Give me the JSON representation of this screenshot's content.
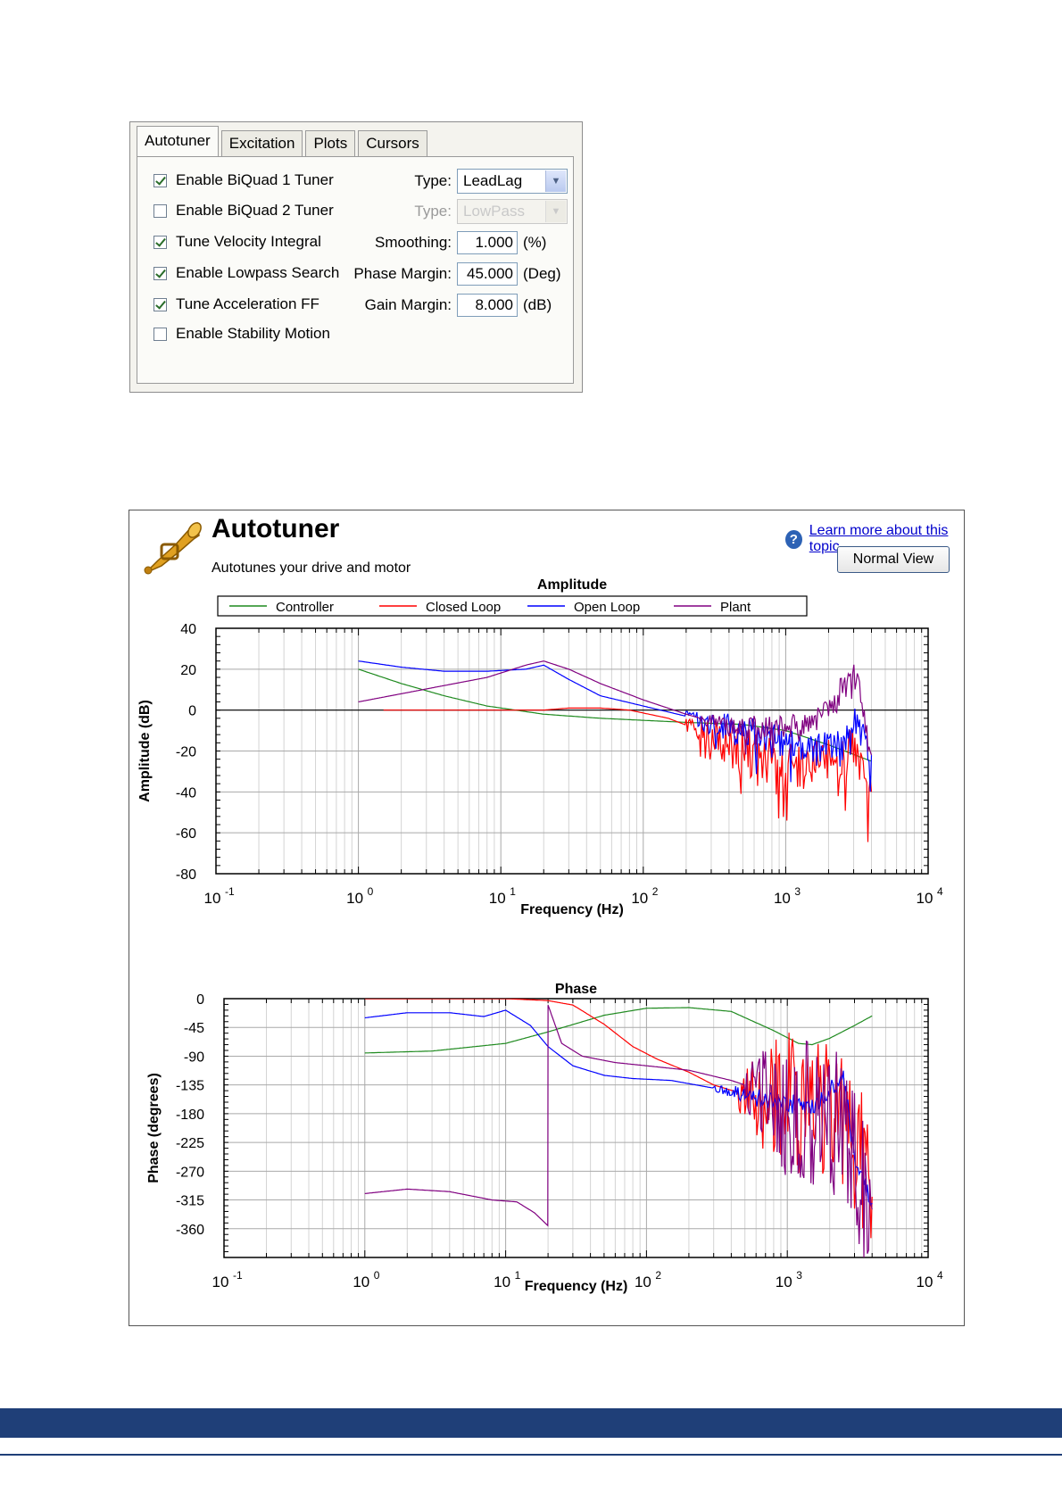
{
  "dialog": {
    "tabs": [
      {
        "label": "Autotuner",
        "active": true
      },
      {
        "label": "Excitation",
        "active": false
      },
      {
        "label": "Plots",
        "active": false
      },
      {
        "label": "Cursors",
        "active": false
      }
    ],
    "checkboxes": [
      {
        "label": "Enable BiQuad 1 Tuner",
        "checked": true,
        "enabled": true
      },
      {
        "label": "Enable BiQuad 2 Tuner",
        "checked": false,
        "enabled": true
      },
      {
        "label": "Tune Velocity Integral",
        "checked": true,
        "enabled": true
      },
      {
        "label": "Enable Lowpass Search",
        "checked": true,
        "enabled": true
      },
      {
        "label": "Tune Acceleration FF",
        "checked": true,
        "enabled": true
      },
      {
        "label": "Enable Stability Motion",
        "checked": false,
        "enabled": true
      }
    ],
    "type1": {
      "label": "Type:",
      "value": "LeadLag",
      "enabled": true
    },
    "type2": {
      "label": "Type:",
      "value": "LowPass",
      "enabled": false
    },
    "smoothing": {
      "label": "Smoothing:",
      "value": "1.000",
      "unit": "(%)"
    },
    "phase_margin": {
      "label": "Phase Margin:",
      "value": "45.000",
      "unit": "(Deg)"
    },
    "gain_margin": {
      "label": "Gain Margin:",
      "value": "8.000",
      "unit": "(dB)"
    }
  },
  "window": {
    "title": "Autotuner",
    "subtitle": "Autotunes your drive and motor",
    "help_link": "Learn more about this topic",
    "normal_view_button": "Normal View",
    "icon": "trumpet-icon"
  },
  "chart_data": [
    {
      "type": "line",
      "title": "Amplitude",
      "xlabel": "Frequency (Hz)",
      "ylabel": "Amplitude (dB)",
      "xscale": "log",
      "xlim": [
        0.1,
        10000
      ],
      "ylim": [
        -80,
        40
      ],
      "xticks": [
        0.1,
        1,
        10,
        100,
        1000,
        10000
      ],
      "xtick_labels": [
        [
          "10",
          "-1"
        ],
        [
          "10",
          "0"
        ],
        [
          "10",
          "1"
        ],
        [
          "10",
          "2"
        ],
        [
          "10",
          "3"
        ],
        [
          "10",
          "4"
        ]
      ],
      "yticks": [
        40,
        20,
        0,
        -20,
        -40,
        -60,
        -80
      ],
      "ytick_labels": [
        "40",
        "20",
        "0",
        "-20",
        "-40",
        "-60",
        "-80"
      ],
      "grid": true,
      "legend": "top",
      "series": [
        {
          "name": "Controller",
          "color": "#1f8a1f",
          "x": [
            1,
            2,
            4,
            8,
            20,
            50,
            100,
            200,
            500,
            1000,
            2000,
            4000
          ],
          "y": [
            20,
            13,
            7,
            2,
            -2,
            -4,
            -5,
            -6,
            -7,
            -10,
            -17,
            -25
          ]
        },
        {
          "name": "Closed Loop",
          "color": "#ff0000",
          "x": [
            1.5,
            3,
            6,
            10,
            15,
            20,
            30,
            50,
            80,
            150,
            300,
            600,
            1000,
            2000,
            3000,
            4000
          ],
          "y": [
            0,
            0,
            0,
            0,
            0,
            0,
            1,
            1,
            0,
            -4,
            -12,
            -22,
            -28,
            -25,
            -20,
            -40
          ],
          "noise": 12,
          "noise_from": 200
        },
        {
          "name": "Open Loop",
          "color": "#0000ff",
          "x": [
            1,
            2,
            4,
            8,
            15,
            20,
            30,
            50,
            100,
            200,
            400,
            800,
            1500,
            2500,
            3000,
            4000
          ],
          "y": [
            24,
            21,
            19,
            19,
            20,
            22,
            15,
            7,
            2,
            -3,
            -9,
            -14,
            -20,
            -17,
            -3,
            -22
          ],
          "noise": 8,
          "noise_from": 200
        },
        {
          "name": "Plant",
          "color": "#800080",
          "x": [
            1,
            2,
            4,
            8,
            15,
            20,
            30,
            50,
            100,
            200,
            400,
            800,
            1500,
            2200,
            2800,
            3300,
            4000
          ],
          "y": [
            4,
            8,
            12,
            16,
            22,
            24,
            20,
            13,
            5,
            -2,
            -8,
            -9,
            -6,
            2,
            22,
            10,
            -22
          ],
          "noise": 6,
          "noise_from": 250
        }
      ]
    },
    {
      "type": "line",
      "title": "Phase",
      "xlabel": "Frequency (Hz)",
      "ylabel": "Phase (degrees)",
      "xscale": "log",
      "xlim": [
        0.1,
        10000
      ],
      "ylim": [
        -405,
        0
      ],
      "xticks": [
        0.1,
        1,
        10,
        100,
        1000,
        10000
      ],
      "xtick_labels": [
        [
          "10",
          "-1"
        ],
        [
          "10",
          "0"
        ],
        [
          "10",
          "1"
        ],
        [
          "10",
          "2"
        ],
        [
          "10",
          "3"
        ],
        [
          "10",
          "4"
        ]
      ],
      "yticks": [
        0,
        -45,
        -90,
        -135,
        -180,
        -225,
        -270,
        -315,
        -360
      ],
      "ytick_labels": [
        "0",
        "-45",
        "-90",
        "-135",
        "-180",
        "-225",
        "-270",
        "-315",
        "-360"
      ],
      "grid": true,
      "series": [
        {
          "name": "Controller",
          "color": "#1f8a1f",
          "x": [
            1,
            3,
            10,
            20,
            50,
            100,
            200,
            400,
            800,
            1200,
            1500,
            2000,
            3000,
            4000
          ],
          "y": [
            -85,
            -82,
            -70,
            -52,
            -26,
            -15,
            -14,
            -20,
            -50,
            -70,
            -72,
            -62,
            -42,
            -27
          ]
        },
        {
          "name": "Closed Loop",
          "color": "#ff0000",
          "x": [
            1,
            5,
            10,
            20,
            30,
            50,
            80,
            120,
            200,
            300,
            500,
            800,
            1200,
            2000,
            3000,
            4000
          ],
          "y": [
            0,
            0,
            0,
            -3,
            -10,
            -40,
            -75,
            -95,
            -115,
            -135,
            -150,
            -160,
            -165,
            -170,
            -220,
            -310
          ],
          "noise": 110,
          "noise_from": 450
        },
        {
          "name": "Open Loop",
          "color": "#0000ff",
          "x": [
            1,
            2,
            4,
            7,
            10,
            15,
            20,
            30,
            50,
            80,
            150,
            300,
            500,
            800,
            1500,
            2500,
            3000,
            4000
          ],
          "y": [
            -30,
            -22,
            -22,
            -28,
            -18,
            -42,
            -75,
            -105,
            -120,
            -125,
            -128,
            -140,
            -150,
            -160,
            -170,
            -120,
            -250,
            -320
          ],
          "noise": 15,
          "noise_from": 300
        },
        {
          "name": "Plant",
          "color": "#800080",
          "x": [
            1,
            2,
            4,
            8,
            12,
            16,
            19.9,
            20,
            25,
            35,
            60,
            100,
            200,
            400,
            800,
            1500,
            2500,
            3000,
            4000
          ],
          "y": [
            -305,
            -298,
            -302,
            -315,
            -318,
            -335,
            -355,
            -10,
            -70,
            -90,
            -100,
            -105,
            -112,
            -128,
            -150,
            -170,
            -200,
            -260,
            -330
          ],
          "noise": 120,
          "noise_from": 500
        }
      ]
    }
  ]
}
